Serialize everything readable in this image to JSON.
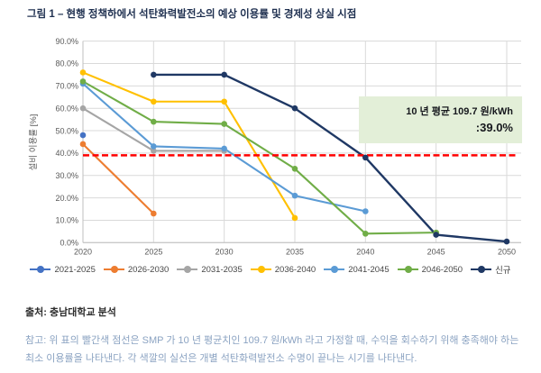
{
  "title": "그림 1 – 현행 정책하에서 석탄화력발전소의 예상 이용률 및 경제성 상실 시점",
  "source": "출처: 충남대학교 분석",
  "note": "참고: 위 표의 빨간색 점선은 SMP 가 10 년 평균치인 109.7 원/kWh 라고 가정할 때, 수익을 회수하기 위해 충족해야 하는 최소 이용률을 나타낸다. 각 색깔의 실선은 개별 석탄화력발전소 수명이 끝나는 시기를 나타낸다.",
  "annotation": {
    "line1": "10 년 평균 109.7 원/kWh",
    "line2": ":39.0%",
    "bg_color": "#e3efd8"
  },
  "chart_data": {
    "type": "line",
    "title": "",
    "xlabel": "",
    "ylabel": "설비 이용률 [%]",
    "x_labels": [
      "2020",
      "2025",
      "2030",
      "2035",
      "2040",
      "2045",
      "2050"
    ],
    "y_labels": [
      "0.0%",
      "10.0%",
      "20.0%",
      "30.0%",
      "40.0%",
      "50.0%",
      "60.0%",
      "70.0%",
      "80.0%",
      "90.0%"
    ],
    "ylim": [
      0,
      90
    ],
    "grid": true,
    "legend_position": "bottom",
    "threshold_line": {
      "value": 39.0,
      "color": "#ff0000",
      "style": "dashed",
      "meaning": "수익 회수를 위한 최소 이용률 39.0% (SMP 10년 평균 109.7 원/kWh 가정)"
    },
    "series": [
      {
        "name": "2021-2025",
        "color": "#4472c4",
        "values": [
          48,
          null,
          null,
          null,
          null,
          null,
          null
        ]
      },
      {
        "name": "2026-2030",
        "color": "#ed7d31",
        "values": [
          44,
          13,
          null,
          null,
          null,
          null,
          null
        ]
      },
      {
        "name": "2031-2035",
        "color": "#a5a5a5",
        "values": [
          60,
          41,
          41,
          null,
          null,
          null,
          null
        ]
      },
      {
        "name": "2036-2040",
        "color": "#ffc000",
        "values": [
          76,
          63,
          63,
          11,
          null,
          null,
          null
        ]
      },
      {
        "name": "2041-2045",
        "color": "#5b9bd5",
        "values": [
          71,
          43,
          42,
          21,
          14,
          null,
          null
        ]
      },
      {
        "name": "2046-2050",
        "color": "#70ad47",
        "values": [
          72,
          54,
          53,
          33,
          4,
          4.5,
          null
        ]
      },
      {
        "name": "신규",
        "color": "#1f3864",
        "values": [
          null,
          75,
          75,
          60,
          38,
          3.5,
          0.5
        ]
      }
    ],
    "axis_color": "#bfbfbf",
    "grid_color": "#d9d9d9",
    "tick_color": "#595959"
  }
}
